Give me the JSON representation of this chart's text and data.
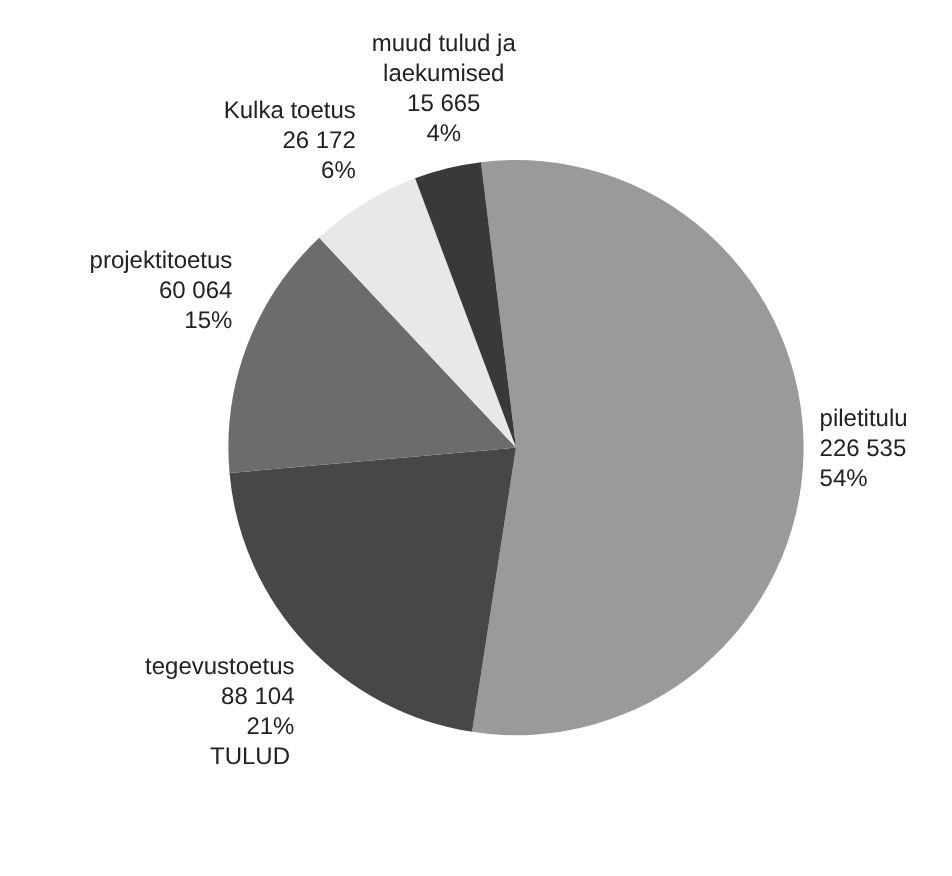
{
  "chart_data": {
    "type": "pie",
    "title": "TULUD",
    "categories": [
      "piletitulu",
      "tegevustoetus",
      "projektitoetus",
      "Kulka toetus",
      "muud tulud ja laekumised"
    ],
    "values": [
      226535,
      88104,
      60064,
      26172,
      15665
    ],
    "value_labels": [
      "226 535\n54%",
      "88 104\n21%",
      "60 064\n15%",
      "26 172\n6%",
      "15 665\n4%"
    ],
    "colors": [
      "#9a9a9a",
      "#474747",
      "#6c6c6c",
      "#e8e8e8",
      "#393939"
    ],
    "legend": false
  }
}
